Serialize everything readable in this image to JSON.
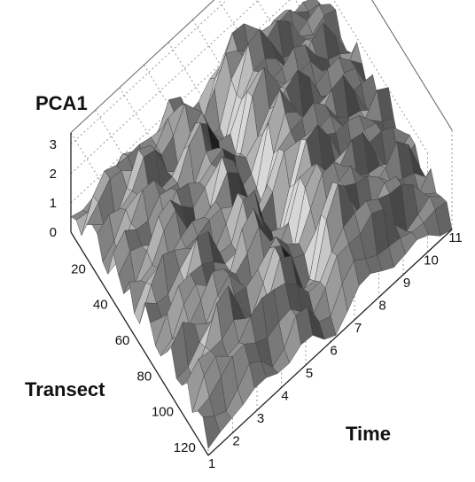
{
  "chart_data": {
    "type": "surface",
    "z_axis": {
      "label": "PCA1",
      "ticks": [
        "0",
        "1",
        "2",
        "3"
      ],
      "range": [
        0,
        3.4
      ]
    },
    "transect_axis": {
      "label": "Transect",
      "ticks": [
        "20",
        "40",
        "60",
        "80",
        "100",
        "120"
      ],
      "range": [
        0,
        125
      ]
    },
    "time_axis": {
      "label": "Time",
      "ticks": [
        "1",
        "2",
        "3",
        "4",
        "5",
        "6",
        "7",
        "8",
        "9",
        "10",
        "11"
      ],
      "range": [
        1,
        11
      ]
    },
    "grid": true,
    "legend": "none",
    "colors": {
      "surface_light": "#d8d8d8",
      "surface_dark": "#1e1e1e",
      "grid": "#9a9a9a"
    },
    "surface_profile": {
      "time": [
        1,
        2,
        3,
        4,
        5,
        6,
        7,
        8,
        9,
        10,
        11
      ],
      "mean_pca1_by_time": [
        1.1,
        1.6,
        2.2,
        1.4,
        2.6,
        0.3,
        2.8,
        2.3,
        1.7,
        1.2,
        0.6
      ]
    }
  }
}
